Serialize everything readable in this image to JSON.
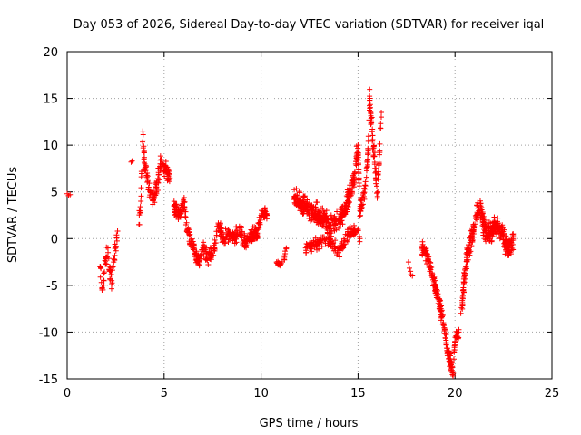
{
  "chart_data": {
    "type": "scatter",
    "title": "Day 053 of 2026, Sidereal Day-to-day VTEC variation (SDTVAR) for receiver iqal",
    "xlabel": "GPS time / hours",
    "ylabel": "SDTVAR / TECUs",
    "xlim": [
      0,
      25
    ],
    "ylim": [
      -15,
      20
    ],
    "xticks": [
      0,
      5,
      10,
      15,
      20,
      25
    ],
    "yticks": [
      -15,
      -10,
      -5,
      0,
      5,
      10,
      15,
      20
    ],
    "grid": true,
    "marker": "plus",
    "color": "#ff0000",
    "segments": [
      {
        "start": 0.0,
        "end": 0.15,
        "count": 3,
        "points": [
          [
            0.0,
            4.8
          ],
          [
            0.07,
            4.6
          ],
          [
            0.15,
            4.7
          ]
        ],
        "jitter": 0.2
      },
      {
        "start": 1.7,
        "end": 2.6,
        "count": 70,
        "points": [
          [
            1.7,
            -3.0
          ],
          [
            1.8,
            -5.5
          ],
          [
            1.9,
            -4.5
          ],
          [
            2.0,
            -2.0
          ],
          [
            2.1,
            -1.0
          ],
          [
            2.2,
            -3.5
          ],
          [
            2.3,
            -4.5
          ],
          [
            2.4,
            -2.5
          ],
          [
            2.5,
            -1.0
          ],
          [
            2.6,
            0.8
          ]
        ],
        "jitter": 1.2
      },
      {
        "start": 3.3,
        "end": 3.35,
        "count": 2,
        "points": [
          [
            3.3,
            8.2
          ],
          [
            3.35,
            8.3
          ]
        ],
        "jitter": 0.1
      },
      {
        "start": 3.7,
        "end": 5.3,
        "count": 140,
        "points": [
          [
            3.7,
            1.5
          ],
          [
            3.8,
            4.0
          ],
          [
            3.9,
            11.5
          ],
          [
            4.0,
            8.0
          ],
          [
            4.2,
            5.5
          ],
          [
            4.4,
            4.5
          ],
          [
            4.6,
            5.0
          ],
          [
            4.8,
            8.0
          ],
          [
            5.0,
            7.5
          ],
          [
            5.2,
            7.0
          ],
          [
            5.3,
            6.5
          ]
        ],
        "jitter": 1.3
      },
      {
        "start": 5.5,
        "end": 10.3,
        "count": 420,
        "points": [
          [
            5.5,
            3.5
          ],
          [
            5.8,
            2.5
          ],
          [
            6.0,
            4.0
          ],
          [
            6.2,
            1.0
          ],
          [
            6.5,
            -1.0
          ],
          [
            6.8,
            -2.5
          ],
          [
            7.0,
            -1.0
          ],
          [
            7.3,
            -2.0
          ],
          [
            7.6,
            -1.0
          ],
          [
            7.8,
            1.5
          ],
          [
            8.0,
            0.0
          ],
          [
            8.3,
            0.5
          ],
          [
            8.6,
            0.0
          ],
          [
            8.9,
            1.0
          ],
          [
            9.2,
            -0.5
          ],
          [
            9.5,
            0.5
          ],
          [
            9.8,
            0.5
          ],
          [
            10.0,
            2.5
          ],
          [
            10.2,
            3.0
          ],
          [
            10.3,
            2.5
          ]
        ],
        "jitter": 1.0
      },
      {
        "start": 10.8,
        "end": 11.3,
        "count": 25,
        "points": [
          [
            10.8,
            -2.5
          ],
          [
            11.0,
            -2.8
          ],
          [
            11.2,
            -2.0
          ],
          [
            11.3,
            -1.0
          ]
        ],
        "jitter": 0.4
      },
      {
        "start": 11.7,
        "end": 16.2,
        "count": 520,
        "points": [
          [
            11.7,
            4.5
          ],
          [
            12.0,
            4.0
          ],
          [
            12.3,
            3.5
          ],
          [
            12.6,
            3.0
          ],
          [
            13.0,
            2.5
          ],
          [
            13.3,
            2.0
          ],
          [
            13.6,
            1.5
          ],
          [
            14.0,
            2.0
          ],
          [
            14.3,
            3.0
          ],
          [
            14.6,
            5.0
          ],
          [
            14.8,
            6.5
          ],
          [
            15.0,
            10.0
          ],
          [
            15.1,
            3.0
          ],
          [
            15.3,
            4.5
          ],
          [
            15.5,
            8.5
          ],
          [
            15.6,
            14.8
          ],
          [
            16.0,
            4.5
          ],
          [
            16.2,
            13.5
          ]
        ],
        "jitter": 1.3
      },
      {
        "start": 12.3,
        "end": 15.1,
        "count": 160,
        "points": [
          [
            12.3,
            -1.0
          ],
          [
            13.0,
            -0.5
          ],
          [
            13.5,
            0.0
          ],
          [
            14.0,
            -1.5
          ],
          [
            14.5,
            0.5
          ],
          [
            15.0,
            1.0
          ],
          [
            15.1,
            0.0
          ]
        ],
        "jitter": 0.8
      },
      {
        "start": 17.6,
        "end": 17.8,
        "count": 5,
        "points": [
          [
            17.6,
            -2.5
          ],
          [
            17.7,
            -3.5
          ],
          [
            17.8,
            -4.0
          ]
        ],
        "jitter": 0.3
      },
      {
        "start": 18.3,
        "end": 20.2,
        "count": 220,
        "points": [
          [
            18.3,
            -1.0
          ],
          [
            18.5,
            -1.5
          ],
          [
            18.7,
            -3.0
          ],
          [
            19.0,
            -5.5
          ],
          [
            19.2,
            -7.0
          ],
          [
            19.4,
            -9.0
          ],
          [
            19.6,
            -12.0
          ],
          [
            19.8,
            -13.5
          ],
          [
            19.9,
            -14.7
          ],
          [
            20.0,
            -11.0
          ],
          [
            20.2,
            -10.0
          ]
        ],
        "jitter": 1.0
      },
      {
        "start": 20.3,
        "end": 23.0,
        "count": 350,
        "points": [
          [
            20.3,
            -8.0
          ],
          [
            20.5,
            -4.0
          ],
          [
            20.7,
            -1.0
          ],
          [
            20.9,
            0.5
          ],
          [
            21.1,
            2.5
          ],
          [
            21.3,
            3.5
          ],
          [
            21.5,
            1.0
          ],
          [
            21.8,
            0.5
          ],
          [
            22.1,
            1.5
          ],
          [
            22.4,
            0.5
          ],
          [
            22.6,
            -0.5
          ],
          [
            22.8,
            -1.0
          ],
          [
            23.0,
            0.0
          ]
        ],
        "jitter": 1.4
      }
    ]
  }
}
